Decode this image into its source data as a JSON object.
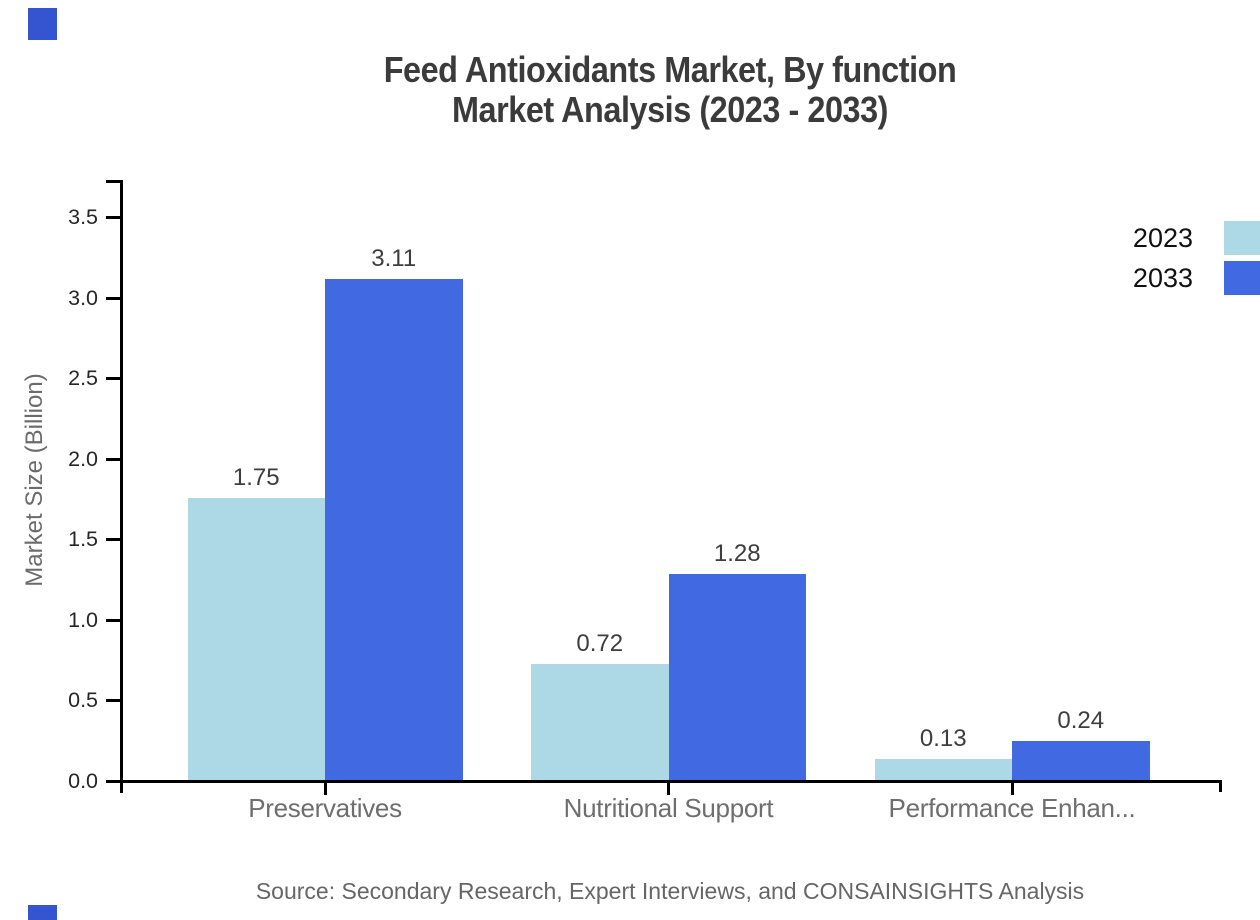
{
  "title": {
    "line1": "Feed Antioxidants Market, By function",
    "line2": "Market Analysis (2023 - 2033)"
  },
  "source": "Source: Secondary Research, Expert Interviews, and CONSAINSIGHTS Analysis",
  "colors": {
    "series_2023": "#ADD8E6",
    "series_2033": "#4169E1",
    "axis": "#000000",
    "brand_mark": "#3454d1",
    "title_text": "#3b3b3b",
    "muted_text": "#6e6e6e",
    "tick_text": "#262626",
    "value_text": "#3d3d3d"
  },
  "legend": {
    "position": "top-right",
    "items": [
      {
        "label": "2023",
        "color": "#ADD8E6"
      },
      {
        "label": "2033",
        "color": "#4169E1"
      }
    ]
  },
  "chart_data": {
    "type": "bar",
    "title": "Feed Antioxidants Market, By function Market Analysis (2023 - 2033)",
    "categories": [
      "Preservatives",
      "Nutritional Support",
      "Performance Enhan..."
    ],
    "series": [
      {
        "name": "2023",
        "color": "#ADD8E6",
        "values": [
          1.75,
          0.72,
          0.13
        ],
        "labels": [
          "1.75",
          "0.72",
          "0.13"
        ]
      },
      {
        "name": "2033",
        "color": "#4169E1",
        "values": [
          3.11,
          1.28,
          0.24
        ],
        "labels": [
          "3.11",
          "1.28",
          "0.24"
        ]
      }
    ],
    "xlabel": "",
    "ylabel": "Market Size (Billion)",
    "ylim": [
      0,
      3.73
    ],
    "yticks": [
      0.0,
      0.5,
      1.0,
      1.5,
      2.0,
      2.5,
      3.0,
      3.5
    ],
    "ytick_labels": [
      "0.0",
      "0.5",
      "1.0",
      "1.5",
      "2.0",
      "2.5",
      "3.0",
      "3.5"
    ],
    "grid": false,
    "legend_position": "top-right"
  }
}
